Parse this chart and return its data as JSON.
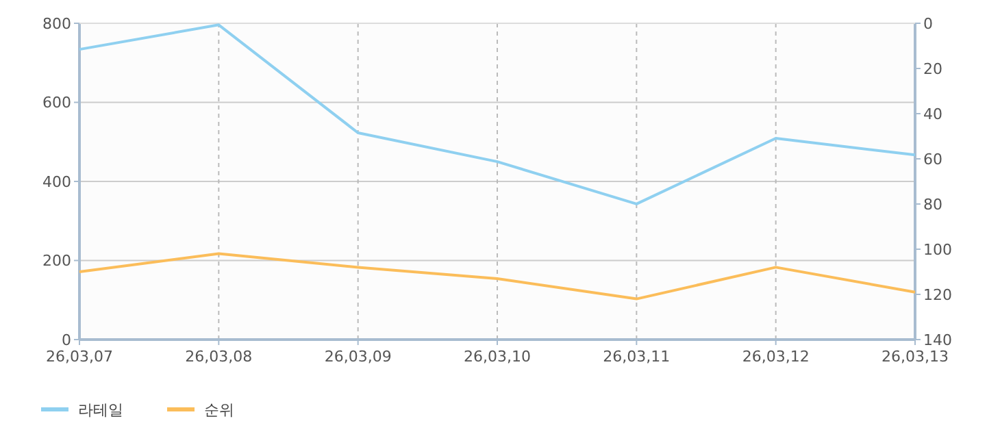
{
  "chart_data": {
    "type": "line",
    "categories": [
      "26,03,07",
      "26,03,08",
      "26,03,09",
      "26,03,10",
      "26,03,11",
      "26,03,12",
      "26,03,13"
    ],
    "series": [
      {
        "name": "라테일",
        "color": "#8fd0f0",
        "values": [
          734,
          796,
          523,
          450,
          343,
          509,
          467
        ]
      },
      {
        "name": "순위",
        "color": "#fbbd5a",
        "axis": "y2",
        "values": [
          110,
          102,
          108,
          113,
          122,
          108,
          119
        ]
      }
    ],
    "ylim": [
      0,
      800
    ],
    "yticks": [
      0,
      200,
      400,
      600,
      800
    ],
    "y2lim": [
      140,
      0
    ],
    "y2ticks": [
      0,
      20,
      40,
      60,
      80,
      100,
      120,
      140
    ],
    "grid": true,
    "legend": "bottom left",
    "marker": "none",
    "line_style": "solid"
  }
}
